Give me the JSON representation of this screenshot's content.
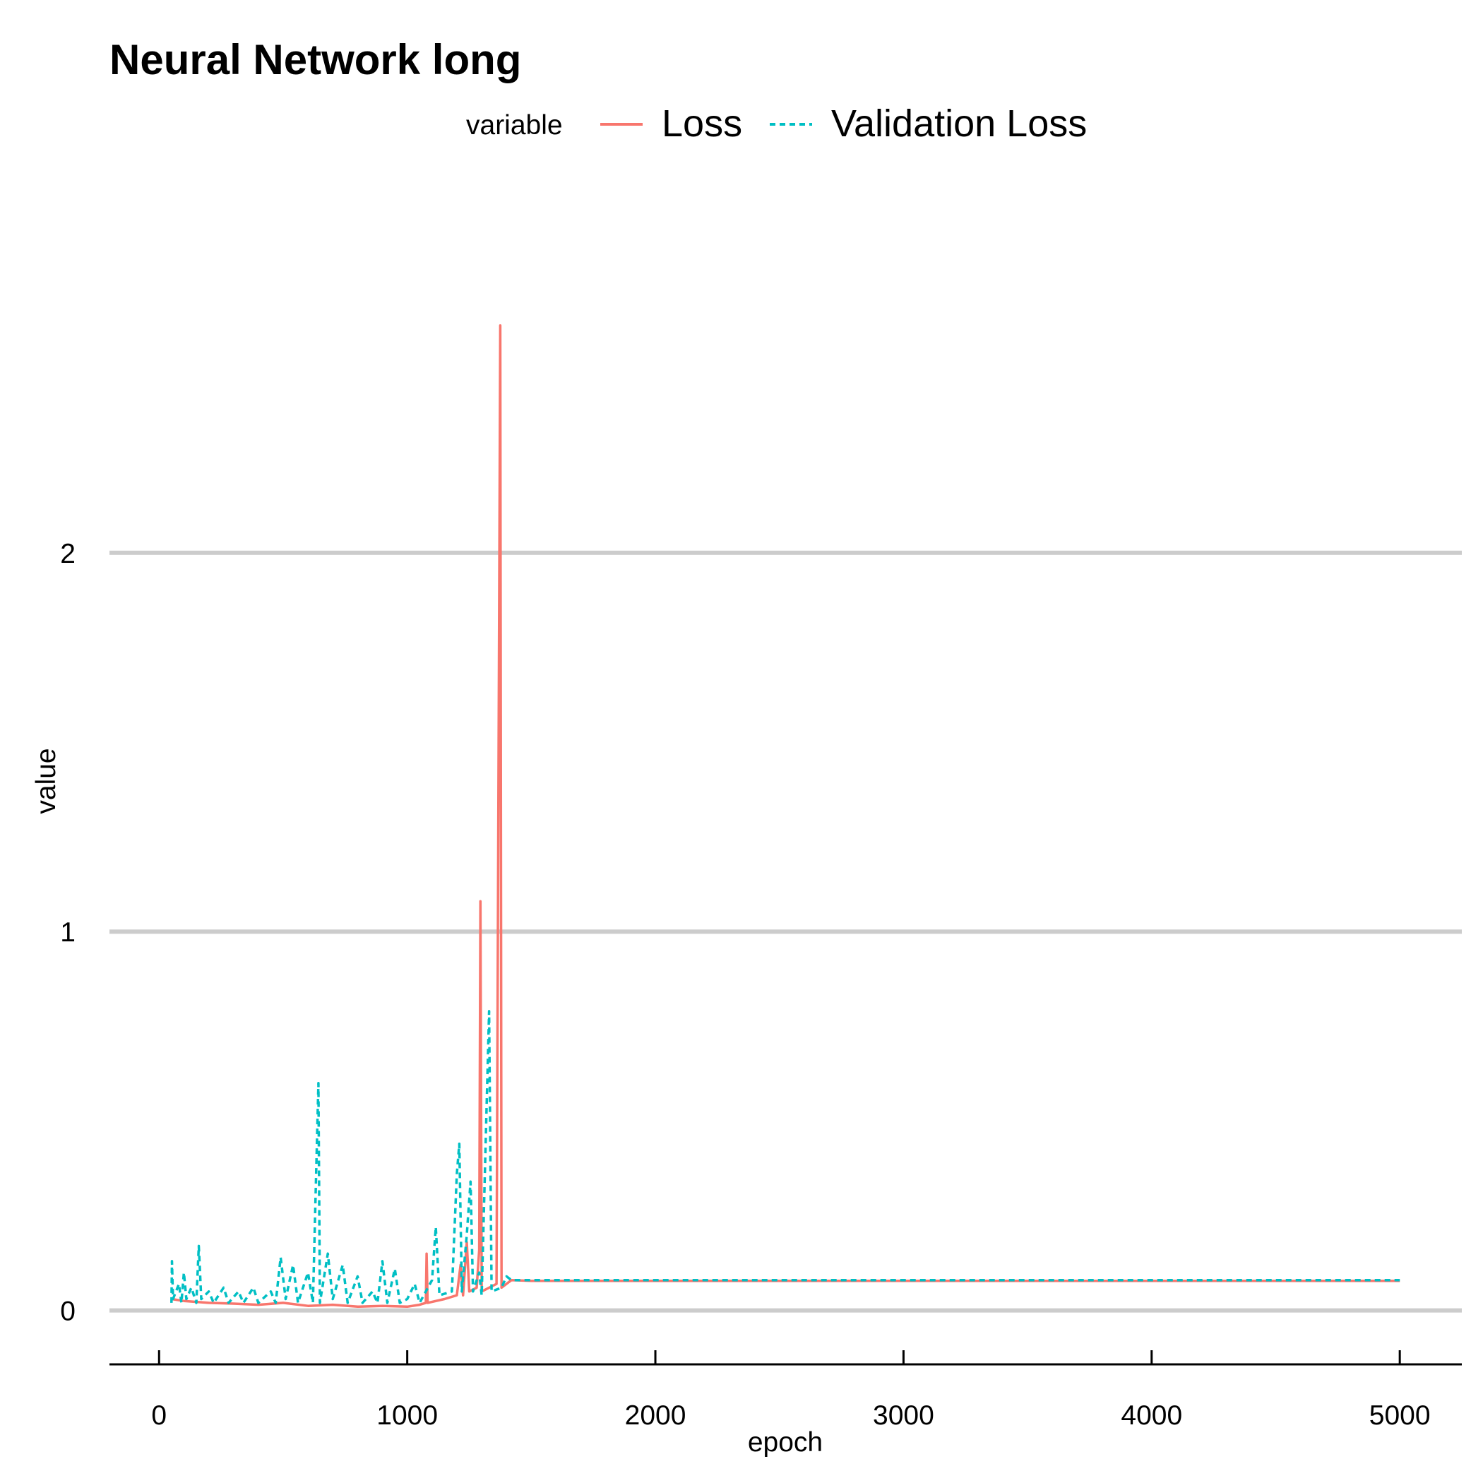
{
  "chart_data": {
    "type": "line",
    "title": "Neural Network long",
    "xlabel": "epoch",
    "ylabel": "value",
    "xlim": [
      -200,
      5250
    ],
    "ylim": [
      -0.12,
      2.9
    ],
    "x_ticks": [
      0,
      1000,
      2000,
      3000,
      4000,
      5000
    ],
    "y_ticks": [
      0,
      1,
      2
    ],
    "grid": "horizontal-major",
    "legend": {
      "title": "variable",
      "position": "top"
    },
    "series": [
      {
        "name": "Loss",
        "color": "#F8766D",
        "line_style": "solid",
        "points": [
          [
            50,
            0.03
          ],
          [
            100,
            0.025
          ],
          [
            200,
            0.02
          ],
          [
            300,
            0.018
          ],
          [
            400,
            0.015
          ],
          [
            500,
            0.02
          ],
          [
            600,
            0.012
          ],
          [
            700,
            0.015
          ],
          [
            800,
            0.01
          ],
          [
            900,
            0.012
          ],
          [
            1000,
            0.01
          ],
          [
            1050,
            0.015
          ],
          [
            1075,
            0.02
          ],
          [
            1078,
            0.15
          ],
          [
            1082,
            0.02
          ],
          [
            1150,
            0.03
          ],
          [
            1200,
            0.04
          ],
          [
            1215,
            0.12
          ],
          [
            1225,
            0.04
          ],
          [
            1240,
            0.18
          ],
          [
            1250,
            0.05
          ],
          [
            1280,
            0.06
          ],
          [
            1290,
            0.16
          ],
          [
            1295,
            1.08
          ],
          [
            1300,
            0.05
          ],
          [
            1330,
            0.06
          ],
          [
            1360,
            0.07
          ],
          [
            1375,
            2.6
          ],
          [
            1380,
            0.06
          ],
          [
            1420,
            0.08
          ],
          [
            1500,
            0.078
          ],
          [
            2000,
            0.078
          ],
          [
            3000,
            0.078
          ],
          [
            4000,
            0.078
          ],
          [
            5000,
            0.078
          ]
        ]
      },
      {
        "name": "Validation Loss",
        "color": "#00BFC4",
        "line_style": "dashed",
        "points": [
          [
            50,
            0.02
          ],
          [
            52,
            0.13
          ],
          [
            56,
            0.03
          ],
          [
            80,
            0.07
          ],
          [
            90,
            0.02
          ],
          [
            100,
            0.1
          ],
          [
            110,
            0.03
          ],
          [
            130,
            0.06
          ],
          [
            150,
            0.02
          ],
          [
            160,
            0.17
          ],
          [
            170,
            0.03
          ],
          [
            200,
            0.05
          ],
          [
            220,
            0.02
          ],
          [
            260,
            0.06
          ],
          [
            280,
            0.02
          ],
          [
            320,
            0.05
          ],
          [
            340,
            0.02
          ],
          [
            380,
            0.06
          ],
          [
            400,
            0.02
          ],
          [
            450,
            0.05
          ],
          [
            470,
            0.02
          ],
          [
            490,
            0.14
          ],
          [
            510,
            0.03
          ],
          [
            540,
            0.12
          ],
          [
            560,
            0.02
          ],
          [
            600,
            0.1
          ],
          [
            620,
            0.02
          ],
          [
            642,
            0.6
          ],
          [
            648,
            0.02
          ],
          [
            680,
            0.15
          ],
          [
            700,
            0.03
          ],
          [
            740,
            0.12
          ],
          [
            760,
            0.02
          ],
          [
            800,
            0.09
          ],
          [
            820,
            0.02
          ],
          [
            860,
            0.05
          ],
          [
            880,
            0.02
          ],
          [
            900,
            0.13
          ],
          [
            920,
            0.02
          ],
          [
            950,
            0.11
          ],
          [
            970,
            0.02
          ],
          [
            1000,
            0.03
          ],
          [
            1030,
            0.07
          ],
          [
            1050,
            0.02
          ],
          [
            1100,
            0.08
          ],
          [
            1115,
            0.22
          ],
          [
            1130,
            0.04
          ],
          [
            1180,
            0.05
          ],
          [
            1200,
            0.36
          ],
          [
            1210,
            0.44
          ],
          [
            1220,
            0.05
          ],
          [
            1240,
            0.2
          ],
          [
            1255,
            0.34
          ],
          [
            1265,
            0.05
          ],
          [
            1290,
            0.1
          ],
          [
            1300,
            0.04
          ],
          [
            1330,
            0.79
          ],
          [
            1340,
            0.05
          ],
          [
            1380,
            0.06
          ],
          [
            1400,
            0.09
          ],
          [
            1420,
            0.08
          ],
          [
            1500,
            0.08
          ],
          [
            2000,
            0.08
          ],
          [
            3000,
            0.08
          ],
          [
            4000,
            0.08
          ],
          [
            5000,
            0.08
          ]
        ]
      }
    ]
  }
}
